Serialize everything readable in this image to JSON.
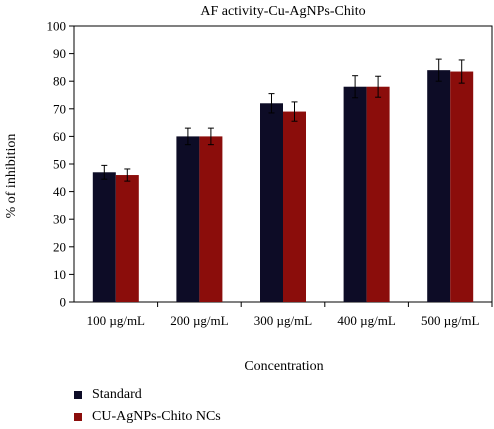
{
  "chart_data": {
    "type": "bar",
    "title": "AF activity-Cu-AgNPs-Chito",
    "xlabel": "Concentration",
    "ylabel": "% of inhibition",
    "ylim": [
      0,
      100
    ],
    "yticks": [
      0,
      10,
      20,
      30,
      40,
      50,
      60,
      70,
      80,
      90,
      100
    ],
    "grid": false,
    "legend_position": "bottom-left",
    "categories": [
      "100 µg/mL",
      "200 µg/mL",
      "300 µg/mL",
      "400 µg/mL",
      "500 µg/mL"
    ],
    "series": [
      {
        "name": "Standard",
        "color": "#0d0c26",
        "values": [
          47,
          60,
          72,
          78,
          84
        ],
        "errors": [
          2.5,
          3,
          3.5,
          4,
          4
        ]
      },
      {
        "name": "CU-AgNPs-Chito NCs",
        "color": "#8b0d0b",
        "values": [
          46,
          60,
          69,
          78,
          83.5
        ],
        "errors": [
          2.2,
          3,
          3.5,
          3.8,
          4.2
        ]
      }
    ]
  }
}
